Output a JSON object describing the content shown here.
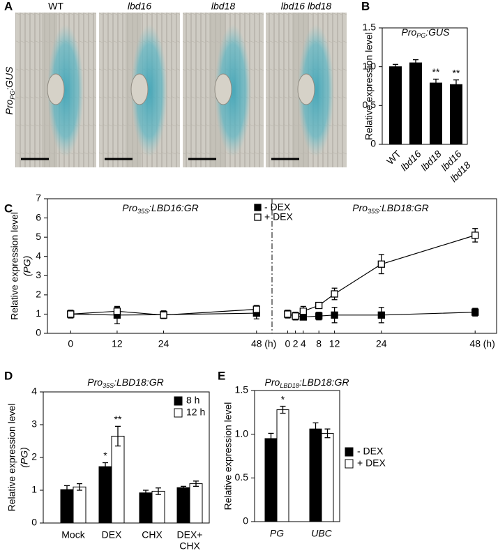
{
  "panel_labels": [
    "A",
    "B",
    "C",
    "D",
    "E"
  ],
  "panel_a": {
    "columns": [
      "WT",
      "lbd16",
      "lbd18",
      "lbd16 lbd18"
    ],
    "row_label": [
      "Pro",
      "PG",
      ":GUS"
    ]
  },
  "chart_data": [
    {
      "type": "bar",
      "title": [
        "Pro",
        "PG",
        ":GUS"
      ],
      "y_label": "Relative expression level",
      "categories": [
        "WT",
        "lbd16",
        "lbd18",
        [
          "lbd16",
          "lbd18"
        ]
      ],
      "values": [
        1.0,
        1.05,
        0.79,
        0.77
      ],
      "errors": [
        0.03,
        0.04,
        0.05,
        0.06
      ],
      "annotations": [
        null,
        null,
        "**",
        "**"
      ],
      "color": "#000000",
      "ylim": [
        0,
        1.5
      ],
      "yticks": [
        0,
        0.5,
        {
          "value": 1,
          "label": "1.0"
        },
        1.5
      ]
    },
    {
      "type": "line",
      "y_label": "Relative expression level",
      "y_label_2": "(PG)",
      "ylim": [
        0,
        7
      ],
      "yticks": [
        0,
        1,
        2,
        3,
        4,
        5,
        6,
        7
      ],
      "x_unit": "(h)",
      "legend": [
        {
          "name": "- DEX",
          "color": "#000000"
        },
        {
          "name": "+ DEX",
          "color": "#ffffff"
        }
      ],
      "panels": [
        {
          "title": [
            "Pro",
            "35S",
            ":LBD16:GR"
          ],
          "x": [
            0,
            12,
            24,
            48
          ],
          "xlim": [
            -6,
            52
          ],
          "xticks": [
            0,
            12,
            24,
            48
          ],
          "series": [
            {
              "values": [
                1.0,
                0.95,
                0.97,
                1.05
              ],
              "errors": [
                0.2,
                0.45,
                0.2,
                0.3
              ]
            },
            {
              "values": [
                1.0,
                1.15,
                0.95,
                1.25
              ],
              "errors": [
                0.2,
                0.2,
                0.15,
                0.2
              ]
            }
          ]
        },
        {
          "title": [
            "Pro",
            "35S",
            ":LBD18:GR"
          ],
          "x": [
            0,
            2,
            4,
            8,
            12,
            24,
            48
          ],
          "xlim": [
            -4,
            53.5
          ],
          "xticks": [
            0,
            2,
            4,
            8,
            12,
            24,
            48
          ],
          "series": [
            {
              "values": [
                1.0,
                0.9,
                0.85,
                0.9,
                0.95,
                0.95,
                1.1
              ],
              "errors": [
                0.2,
                0.2,
                0.15,
                0.2,
                0.4,
                0.4,
                0.2
              ]
            },
            {
              "values": [
                1.0,
                0.9,
                1.15,
                1.45,
                2.05,
                3.6,
                5.1
              ],
              "errors": [
                0.2,
                0.2,
                0.25,
                0.15,
                0.3,
                0.5,
                0.35
              ]
            }
          ]
        }
      ]
    },
    {
      "type": "grouped_bar",
      "title": [
        "Pro",
        "35S",
        ":LBD18:GR"
      ],
      "y_label": "Relative expression level",
      "y_label_2": "(PG)",
      "categories": [
        "Mock",
        "DEX",
        "CHX",
        [
          "DEX+",
          "CHX"
        ]
      ],
      "series": [
        {
          "name": "8 h",
          "color": "#000000",
          "values": [
            1.02,
            1.72,
            0.92,
            1.08
          ],
          "errors": [
            0.12,
            0.12,
            0.08,
            0.04
          ],
          "annotations": [
            null,
            "*",
            null,
            null
          ]
        },
        {
          "name": "12 h",
          "color": "#ffffff",
          "values": [
            1.1,
            2.65,
            0.97,
            1.2
          ],
          "errors": [
            0.1,
            0.3,
            0.1,
            0.08
          ],
          "annotations": [
            null,
            "**",
            null,
            null
          ]
        }
      ],
      "ylim": [
        0,
        4
      ],
      "yticks": [
        0,
        1,
        2,
        3,
        4
      ]
    },
    {
      "type": "grouped_bar",
      "title": [
        "Pro",
        "LBD18",
        ":LBD18:GR"
      ],
      "y_label": "Relative expression level",
      "categories": [
        "PG",
        "UBC"
      ],
      "series": [
        {
          "name": "- DEX",
          "color": "#000000",
          "values": [
            0.95,
            1.06
          ],
          "errors": [
            0.06,
            0.07
          ],
          "annotations": [
            null,
            null
          ]
        },
        {
          "name": "+ DEX",
          "color": "#ffffff",
          "values": [
            1.28,
            1.01
          ],
          "errors": [
            0.04,
            0.05
          ],
          "annotations": [
            "*",
            null
          ]
        }
      ],
      "ylim": [
        0,
        1.5
      ],
      "yticks": [
        0,
        0.5,
        {
          "value": 1,
          "label": "1.0"
        },
        1.5
      ]
    }
  ]
}
